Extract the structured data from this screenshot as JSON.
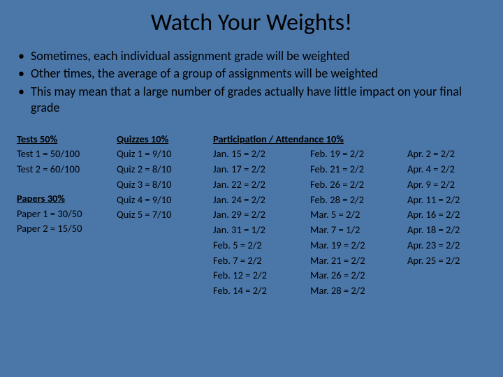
{
  "title": "Watch Your Weights!",
  "bullets": [
    "Sometimes, each individual assignment grade will be weighted",
    "Other times, the average of a group of assignments will be weighted",
    "This may mean that a large number of grades actually have little impact on your final grade"
  ],
  "tests": {
    "heading": "Tests  50%",
    "items": [
      "Test 1 = 50/100",
      "Test 2 = 60/100"
    ]
  },
  "papers": {
    "heading": "Papers  30%",
    "items": [
      "Paper 1 = 30/50",
      "Paper 2 = 15/50"
    ]
  },
  "quizzes": {
    "heading": "Quizzes  10%",
    "items": [
      "Quiz 1 = 9/10",
      "Quiz 2 = 8/10",
      "Quiz 3 = 8/10",
      "Quiz 4 = 9/10",
      "Quiz 5 = 7/10"
    ]
  },
  "participation": {
    "heading": "Participation / Attendance  10%",
    "col1": [
      "Jan. 15 = 2/2",
      "Jan. 17 = 2/2",
      "Jan. 22 = 2/2",
      "Jan. 24 = 2/2",
      "Jan. 29 = 2/2",
      "Jan. 31 = 1/2",
      "Feb. 5 = 2/2",
      "Feb. 7 = 2/2",
      "Feb. 12 = 2/2",
      "Feb. 14 = 2/2"
    ],
    "col2": [
      "Feb. 19 = 2/2",
      "Feb. 21 = 2/2",
      "Feb. 26 = 2/2",
      "Feb. 28 = 2/2",
      "Mar. 5 = 2/2",
      "Mar. 7 = 1/2",
      "Mar. 19 = 2/2",
      "Mar. 21 = 2/2",
      "Mar. 26 = 2/2",
      "Mar. 28 = 2/2"
    ],
    "col3": [
      "Apr. 2 = 2/2",
      "Apr. 4 = 2/2",
      "Apr. 9 = 2/2",
      "Apr. 11 = 2/2",
      "Apr. 16 = 2/2",
      "Apr. 18 = 2/2",
      "Apr. 23 = 2/2",
      "Apr. 25 = 2/2"
    ]
  },
  "styling": {
    "background_color": "#4a76a8",
    "text_color": "#000000",
    "title_fontsize": 34,
    "body_fontsize": 18,
    "table_fontsize": 14.5,
    "font_family": "Calibri"
  }
}
